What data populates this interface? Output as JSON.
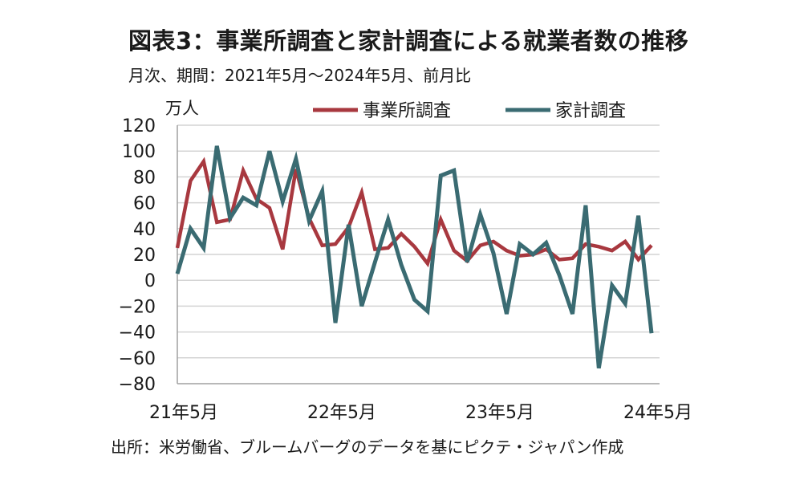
{
  "chart_data": {
    "type": "line",
    "title": "図表3：事業所調査と家計調査による就業者数の推移",
    "subtitle": "月次、期間：2021年5月～2024年5月、前月比",
    "ylabel": "万人",
    "ylim": [
      -80,
      120
    ],
    "yticks": [
      "120",
      "100",
      "80",
      "60",
      "40",
      "20",
      "0",
      "-20",
      "-40",
      "-60",
      "-80"
    ],
    "xtick_labels": [
      {
        "index": 0,
        "label": "21年5月"
      },
      {
        "index": 12,
        "label": "22年5月"
      },
      {
        "index": 24,
        "label": "23年5月"
      },
      {
        "index": 36,
        "label": "24年5月"
      }
    ],
    "grid": true,
    "legend_position": "top",
    "series": [
      {
        "name": "事業所調査",
        "color": "#a8383f",
        "values": [
          25,
          77,
          92,
          45,
          47,
          85,
          63,
          56,
          24,
          86,
          48,
          27,
          28,
          41,
          68,
          24,
          25,
          36,
          26,
          13,
          47,
          23,
          15,
          27,
          30,
          23,
          19,
          20,
          24,
          16,
          17,
          28,
          26,
          23,
          30,
          16,
          27
        ]
      },
      {
        "name": "家計調査",
        "color": "#3a6b72",
        "values": [
          5,
          40,
          25,
          104,
          48,
          64,
          58,
          100,
          61,
          94,
          46,
          69,
          -33,
          43,
          -20,
          14,
          47,
          12,
          -15,
          -24,
          81,
          85,
          14,
          51,
          21,
          -26,
          28,
          20,
          29,
          4,
          -26,
          58,
          -68,
          -4,
          -18,
          50,
          -41
        ]
      }
    ]
  },
  "source": "出所：米労働省、ブルームバーグのデータを基にピクテ・ジャパン作成"
}
